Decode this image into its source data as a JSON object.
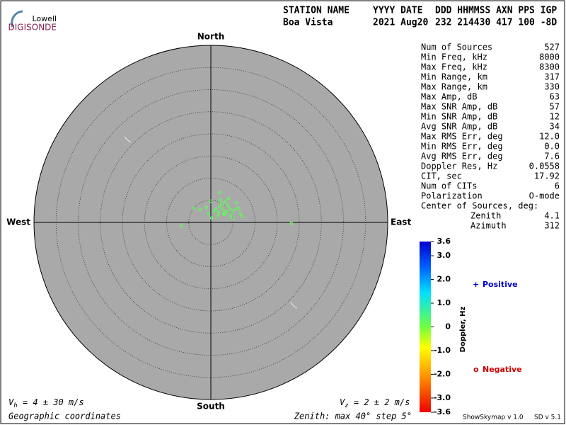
{
  "logo": {
    "top": "Lowell",
    "bottom": "DIGISONDE"
  },
  "header": {
    "labels": [
      "STATION NAME",
      "YYYY DATE",
      "DDD HHMMSS AXN PPS IGP"
    ],
    "values": [
      "Boa Vista",
      "2021 Aug20",
      "232 214430 417 100 -8D"
    ]
  },
  "stats": [
    [
      "Num of Sources",
      "527"
    ],
    [
      "Min Freq, kHz",
      "8000"
    ],
    [
      "Max Freq, kHz",
      "8300"
    ],
    [
      "Min Range, km",
      "317"
    ],
    [
      "Max Range, km",
      "330"
    ],
    [
      "Max Amp, dB",
      "63"
    ],
    [
      "Max SNR Amp, dB",
      "57"
    ],
    [
      "Min SNR Amp, dB",
      "12"
    ],
    [
      "Avg SNR Amp, dB",
      "34"
    ],
    [
      "Max RMS Err, deg",
      "12.0"
    ],
    [
      "Min RMS Err, deg",
      "0.0"
    ],
    [
      "Avg RMS Err, deg",
      "7.6"
    ],
    [
      "Doppler Res, Hz",
      "0.0558"
    ],
    [
      "CIT, sec",
      "17.92"
    ],
    [
      "Num of CITs",
      "6"
    ],
    [
      "Polarization",
      "O-mode"
    ]
  ],
  "center": {
    "title": "Center of Sources, deg:",
    "rows": [
      [
        "Zenith",
        "4.1"
      ],
      [
        "Azimuth",
        "312"
      ]
    ]
  },
  "compass": {
    "north": "North",
    "south": "South",
    "east": "East",
    "west": "West"
  },
  "plot": {
    "zenith_max": 40,
    "zenith_rings": [
      5,
      10,
      15,
      20,
      25,
      30,
      35
    ]
  },
  "sources": [
    [
      2.7,
      3.0,
      0.2
    ],
    [
      3.5,
      2.5,
      0.2
    ],
    [
      1.8,
      2.2,
      0.2
    ],
    [
      4.2,
      3.1,
      0.2
    ],
    [
      2.0,
      3.6,
      0.2
    ],
    [
      3.1,
      1.8,
      0.2
    ],
    [
      4.8,
      2.4,
      0.2
    ],
    [
      1.2,
      3.0,
      0.2
    ],
    [
      2.5,
      4.2,
      0.2
    ],
    [
      3.8,
      3.8,
      0.2
    ],
    [
      5.5,
      2.9,
      0.2
    ],
    [
      0.6,
      2.6,
      0.2
    ],
    [
      2.9,
      2.0,
      0.2
    ],
    [
      4.5,
      1.6,
      0.2
    ],
    [
      1.6,
      1.4,
      0.2
    ],
    [
      6.3,
      3.2,
      0.2
    ],
    [
      3.3,
      4.6,
      0.2
    ],
    [
      2.2,
      5.0,
      0.2
    ],
    [
      1.9,
      6.7,
      0.2
    ],
    [
      -1.0,
      3.4,
      0.2
    ],
    [
      -2.4,
      2.9,
      0.2
    ],
    [
      -3.8,
      3.2,
      0.2
    ],
    [
      0.2,
      1.0,
      0.2
    ],
    [
      5.0,
      0.9,
      0.2
    ],
    [
      7.0,
      1.3,
      0.2
    ],
    [
      5.8,
      4.4,
      0.2
    ],
    [
      0.0,
      4.8,
      0.2
    ],
    [
      -0.5,
      2.0,
      0.2
    ],
    [
      -6.6,
      -0.8,
      0.2
    ],
    [
      18.2,
      -0.2,
      0.2
    ],
    [
      4.0,
      5.4,
      0.2
    ],
    [
      6.6,
      2.0,
      0.2
    ]
  ],
  "colorbar": {
    "label": "Doppler, Hz",
    "ticks": [
      {
        "value": 3.6,
        "label": "3.6"
      },
      {
        "value": 3.0,
        "label": "3.0"
      },
      {
        "value": 2.0,
        "label": "2.0"
      },
      {
        "value": 1.0,
        "label": "1.0"
      },
      0,
      {
        "value": -1.0,
        "label": "-1.0"
      },
      {
        "value": -2.0,
        "label": "-2.0"
      },
      {
        "value": -3.0,
        "label": "-3.0"
      },
      {
        "value": -3.6,
        "label": "-3.6"
      }
    ]
  },
  "legend": {
    "positive_symbol": "+",
    "positive": "Positive",
    "negative_symbol": "o",
    "negative": "Negative"
  },
  "footer": {
    "vh": [
      "V",
      "h",
      " = 4 ± 30 m/s"
    ],
    "vz": [
      "V",
      "z",
      " = 2 ± 2 m/s"
    ],
    "coords": "Geographic coordinates",
    "zenith": "Zenith: max 40°  step 5°",
    "program": "ShowSkymap v 1.0",
    "version": "SD v 5.1"
  }
}
